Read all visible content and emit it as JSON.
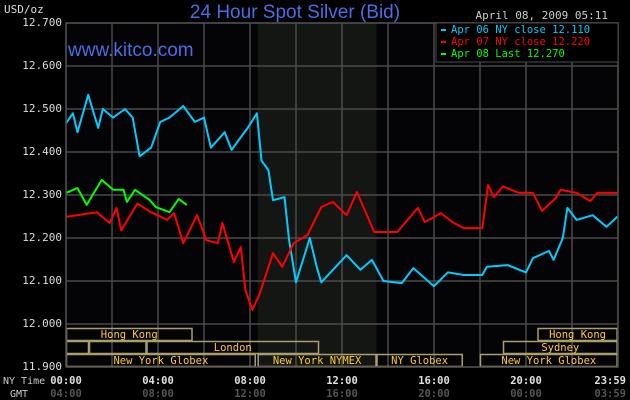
{
  "chart_data": {
    "type": "line",
    "title": "24 Hour Spot Silver (Bid)",
    "watermark": "www.kitco.com",
    "timestamp": "April 08, 2009 05:11",
    "ylabel": "USD/oz",
    "ylim": [
      11.9,
      12.7
    ],
    "yticks": [
      "12.700",
      "12.600",
      "12.500",
      "12.400",
      "12.300",
      "12.200",
      "12.100",
      "12.000",
      "11.900"
    ],
    "x_row_labels": {
      "ny": "NY Time",
      "gmt": "GMT"
    },
    "xticks_ny": [
      "00:00",
      "04:00",
      "08:00",
      "12:00",
      "16:00",
      "20:00",
      "23:59"
    ],
    "xticks_gmt": [
      "04:00",
      "08:00",
      "12:00",
      "16:00",
      "20:00",
      "00:00",
      "03:59"
    ],
    "xlim": [
      "00:00",
      "23:59"
    ],
    "grid": true,
    "legend_position": "top-right",
    "shaded_period": [
      "08:20",
      "13:30"
    ],
    "colors": {
      "title": "#4a6ee6",
      "grid": "#4a4a4a",
      "shade": "#141614",
      "session_border": "#a89f6c",
      "session_text": "#ffcc33"
    },
    "sessions": [
      {
        "label": "Hong Kong",
        "row": 1,
        "start": "00:00",
        "end": "05:30"
      },
      {
        "label": "Hong Kong",
        "row": 1,
        "start": "20:30",
        "end": "23:59"
      },
      {
        "label": "",
        "row": 2,
        "start": "00:00",
        "end": "01:00"
      },
      {
        "label": "",
        "row": 2,
        "start": "01:00",
        "end": "03:30"
      },
      {
        "label": "London",
        "row": 2,
        "start": "03:30",
        "end": "11:00"
      },
      {
        "label": "Sydney",
        "row": 2,
        "start": "19:00",
        "end": "23:59"
      },
      {
        "label": "New York Globex",
        "row": 3,
        "start": "00:00",
        "end": "08:15"
      },
      {
        "label": "New York NYMEX",
        "row": 3,
        "start": "08:20",
        "end": "13:30"
      },
      {
        "label": "NY Globex",
        "row": 3,
        "start": "13:30",
        "end": "17:15"
      },
      {
        "label": "New York Globex",
        "row": 3,
        "start": "18:00",
        "end": "23:59"
      }
    ],
    "series": [
      {
        "name": "Apr 06 NY close 12.110",
        "color": "#00ccff",
        "points": [
          [
            "00:00",
            12.467
          ],
          [
            "00:18",
            12.49
          ],
          [
            "00:30",
            12.446
          ],
          [
            "00:58",
            12.533
          ],
          [
            "01:24",
            12.456
          ],
          [
            "01:36",
            12.5
          ],
          [
            "02:03",
            12.48
          ],
          [
            "02:34",
            12.5
          ],
          [
            "02:54",
            12.48
          ],
          [
            "03:12",
            12.39
          ],
          [
            "03:42",
            12.41
          ],
          [
            "04:06",
            12.47
          ],
          [
            "04:30",
            12.48
          ],
          [
            "05:06",
            12.507
          ],
          [
            "05:36",
            12.47
          ],
          [
            "06:00",
            12.48
          ],
          [
            "06:18",
            12.41
          ],
          [
            "06:54",
            12.446
          ],
          [
            "07:12",
            12.405
          ],
          [
            "07:54",
            12.456
          ],
          [
            "08:18",
            12.49
          ],
          [
            "08:30",
            12.38
          ],
          [
            "08:48",
            12.358
          ],
          [
            "09:00",
            12.288
          ],
          [
            "09:30",
            12.295
          ],
          [
            "09:42",
            12.195
          ],
          [
            "10:00",
            12.097
          ],
          [
            "10:36",
            12.2
          ],
          [
            "10:54",
            12.133
          ],
          [
            "11:06",
            12.097
          ],
          [
            "12:12",
            12.16
          ],
          [
            "12:48",
            12.126
          ],
          [
            "13:18",
            12.149
          ],
          [
            "13:36",
            12.12
          ],
          [
            "13:48",
            12.1
          ],
          [
            "14:36",
            12.095
          ],
          [
            "15:06",
            12.13
          ],
          [
            "16:00",
            12.088
          ],
          [
            "16:36",
            12.12
          ],
          [
            "17:18",
            12.114
          ],
          [
            "18:06",
            12.114
          ],
          [
            "18:18",
            12.133
          ],
          [
            "19:12",
            12.137
          ],
          [
            "20:00",
            12.12
          ],
          [
            "20:18",
            12.153
          ],
          [
            "21:00",
            12.17
          ],
          [
            "21:12",
            12.149
          ],
          [
            "21:36",
            12.2
          ],
          [
            "21:48",
            12.27
          ],
          [
            "22:12",
            12.242
          ],
          [
            "22:54",
            12.253
          ],
          [
            "23:30",
            12.226
          ],
          [
            "23:59",
            12.25
          ]
        ]
      },
      {
        "name": "Apr 07 NY close 12.220",
        "color": "#ff0000",
        "points": [
          [
            "00:00",
            12.249
          ],
          [
            "01:21",
            12.26
          ],
          [
            "01:54",
            12.235
          ],
          [
            "02:12",
            12.27
          ],
          [
            "02:24",
            12.218
          ],
          [
            "03:06",
            12.28
          ],
          [
            "03:42",
            12.26
          ],
          [
            "04:24",
            12.242
          ],
          [
            "04:42",
            12.258
          ],
          [
            "05:06",
            12.188
          ],
          [
            "05:42",
            12.253
          ],
          [
            "06:06",
            12.195
          ],
          [
            "06:36",
            12.188
          ],
          [
            "06:48",
            12.235
          ],
          [
            "07:18",
            12.144
          ],
          [
            "07:36",
            12.179
          ],
          [
            "07:48",
            12.079
          ],
          [
            "08:06",
            12.033
          ],
          [
            "08:24",
            12.067
          ],
          [
            "09:00",
            12.165
          ],
          [
            "09:24",
            12.133
          ],
          [
            "09:54",
            12.188
          ],
          [
            "10:30",
            12.207
          ],
          [
            "11:06",
            12.272
          ],
          [
            "11:36",
            12.284
          ],
          [
            "12:12",
            12.253
          ],
          [
            "12:39",
            12.307
          ],
          [
            "13:24",
            12.214
          ],
          [
            "14:24",
            12.214
          ],
          [
            "15:18",
            12.27
          ],
          [
            "15:36",
            12.237
          ],
          [
            "16:18",
            12.258
          ],
          [
            "16:48",
            12.237
          ],
          [
            "17:18",
            12.223
          ],
          [
            "18:06",
            12.223
          ],
          [
            "18:21",
            12.323
          ],
          [
            "18:36",
            12.295
          ],
          [
            "19:00",
            12.32
          ],
          [
            "19:42",
            12.305
          ],
          [
            "20:18",
            12.305
          ],
          [
            "20:42",
            12.263
          ],
          [
            "21:18",
            12.293
          ],
          [
            "21:30",
            12.312
          ],
          [
            "22:12",
            12.305
          ],
          [
            "22:48",
            12.286
          ],
          [
            "23:06",
            12.305
          ],
          [
            "23:59",
            12.305
          ]
        ]
      },
      {
        "name": "Apr 08 Last 12.270",
        "color": "#00ff00",
        "points": [
          [
            "00:00",
            12.305
          ],
          [
            "00:30",
            12.316
          ],
          [
            "00:54",
            12.277
          ],
          [
            "01:33",
            12.335
          ],
          [
            "02:03",
            12.312
          ],
          [
            "02:30",
            12.312
          ],
          [
            "02:39",
            12.284
          ],
          [
            "03:00",
            12.312
          ],
          [
            "03:39",
            12.288
          ],
          [
            "03:54",
            12.272
          ],
          [
            "04:30",
            12.26
          ],
          [
            "04:54",
            12.291
          ],
          [
            "05:15",
            12.277
          ]
        ]
      }
    ]
  }
}
